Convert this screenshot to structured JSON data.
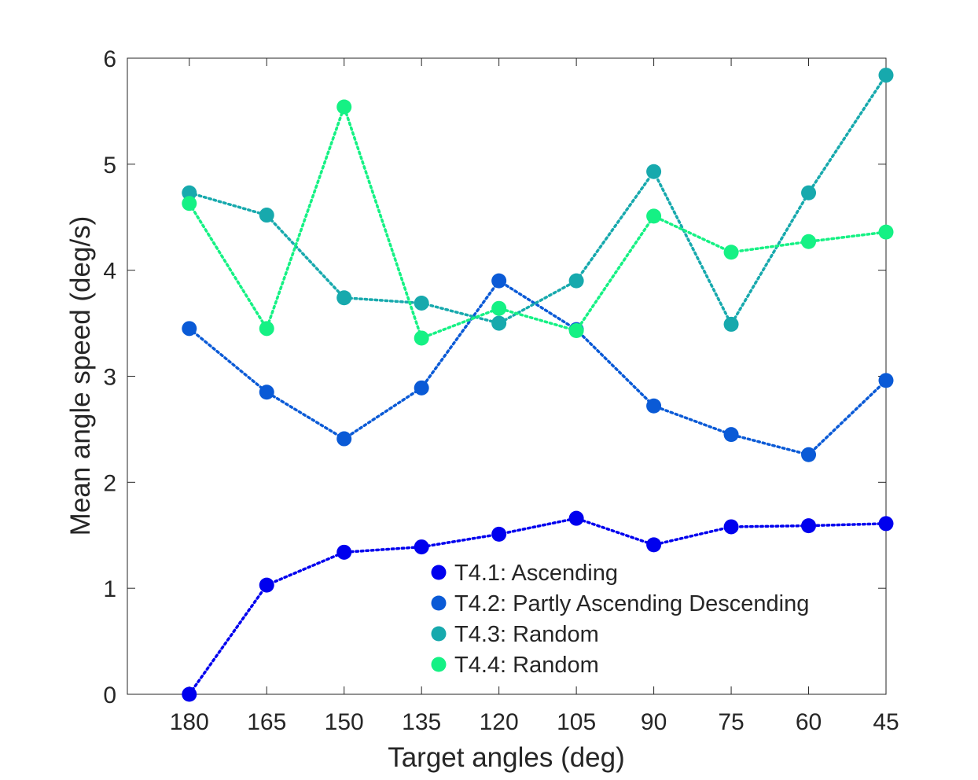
{
  "chart_data": {
    "type": "line",
    "title": "",
    "xlabel": "Target angles (deg)",
    "ylabel": "Mean angle speed (deg/s)",
    "x": [
      180,
      165,
      150,
      135,
      120,
      105,
      90,
      75,
      60,
      45
    ],
    "x_tick_labels": [
      "180",
      "165",
      "150",
      "135",
      "120",
      "105",
      "90",
      "75",
      "60",
      "45"
    ],
    "x_reversed": true,
    "xlim": [
      192,
      45
    ],
    "ylim": [
      0,
      6
    ],
    "y_ticks": [
      0,
      1,
      2,
      3,
      4,
      5,
      6
    ],
    "y_tick_labels": [
      "0",
      "1",
      "2",
      "3",
      "4",
      "5",
      "6"
    ],
    "grid": false,
    "legend_position": "inside-bottom-center",
    "line_style": "dotted",
    "marker": "circle",
    "series": [
      {
        "name": "T4.1: Ascending",
        "color": "#0000ee",
        "values": [
          0.0,
          1.03,
          1.34,
          1.39,
          1.51,
          1.66,
          1.41,
          1.58,
          1.59,
          1.61
        ]
      },
      {
        "name": "T4.2: Partly Ascending Descending",
        "color": "#0a5ad6",
        "values": [
          3.45,
          2.85,
          2.41,
          2.89,
          3.9,
          3.44,
          2.72,
          2.45,
          2.26,
          2.96
        ]
      },
      {
        "name": "T4.3: Random",
        "color": "#17a9ad",
        "values": [
          4.73,
          4.52,
          3.74,
          3.69,
          3.5,
          3.9,
          4.93,
          3.49,
          4.73,
          5.84
        ]
      },
      {
        "name": "T4.4: Random",
        "color": "#15f184",
        "values": [
          4.63,
          3.45,
          5.54,
          3.36,
          3.64,
          3.43,
          4.51,
          4.17,
          4.27,
          4.36
        ]
      }
    ]
  }
}
